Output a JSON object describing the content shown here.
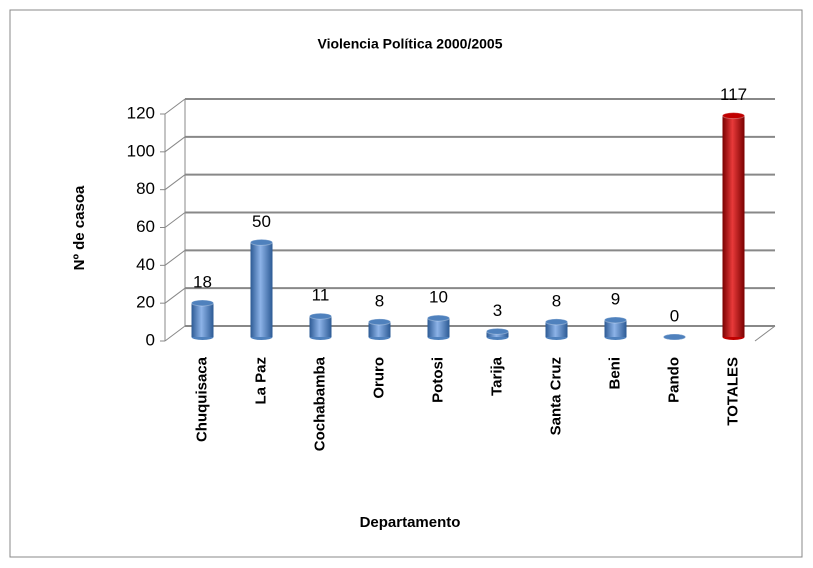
{
  "chart_data": {
    "type": "bar",
    "title": "Violencia Política 2000/2005",
    "x_label": "Departamento",
    "y_label": "Nº de casoa",
    "categories": [
      "Chuquisaca",
      "La Paz",
      "Cochabamba",
      "Oruro",
      "Potosi",
      "Tarija",
      "Santa Cruz",
      "Beni",
      "Pando",
      "TOTALES"
    ],
    "values": [
      18,
      50,
      11,
      8,
      10,
      3,
      8,
      9,
      0,
      117
    ],
    "colors": [
      "#4f81bd",
      "#4f81bd",
      "#4f81bd",
      "#4f81bd",
      "#4f81bd",
      "#4f81bd",
      "#4f81bd",
      "#4f81bd",
      "#4f81bd",
      "#c00000"
    ],
    "ylim": [
      0,
      120
    ],
    "yticks": [
      0,
      20,
      40,
      60,
      80,
      100,
      120
    ],
    "grid": true
  }
}
